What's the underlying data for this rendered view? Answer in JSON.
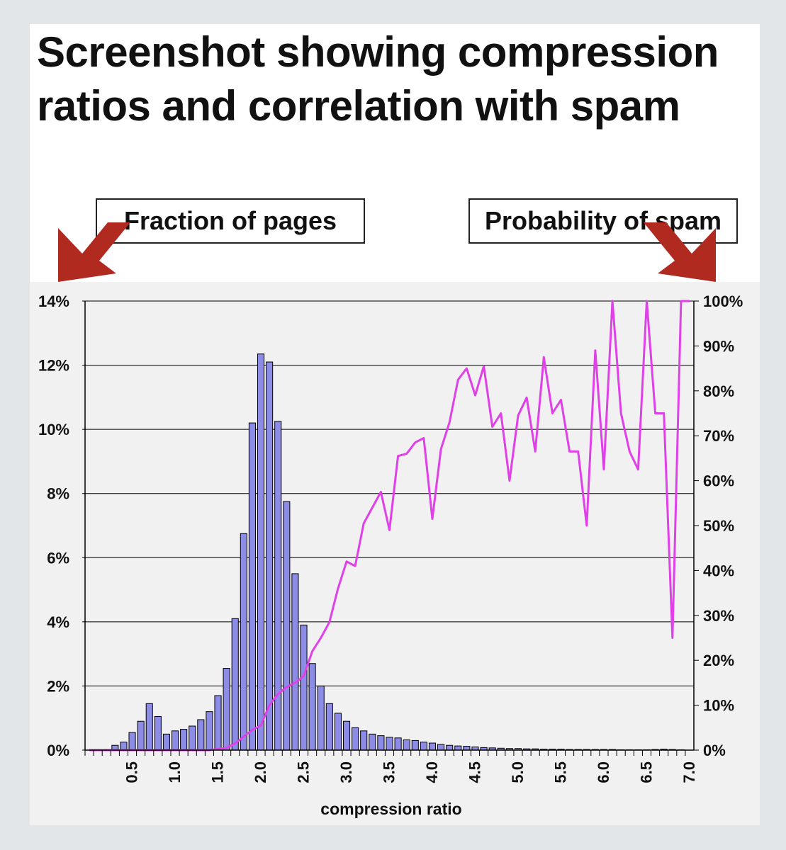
{
  "title": "Screenshot showing compression ratios and correlation with spam",
  "labels": {
    "left": "Fraction of pages",
    "right": "Probability of spam"
  },
  "colors": {
    "bars": "#8c8ce6",
    "line": "#e040e8",
    "arrow": "#b02a20"
  },
  "chart_data": {
    "type": "bar",
    "xlabel": "compression ratio",
    "x_ticks": [
      "0.5",
      "1.0",
      "1.5",
      "2.0",
      "2.5",
      "3.0",
      "3.5",
      "4.0",
      "4.5",
      "5.0",
      "5.5",
      "6.0",
      "6.5",
      "7.0"
    ],
    "y_left_ticks": [
      "0%",
      "2%",
      "4%",
      "6%",
      "8%",
      "10%",
      "12%",
      "14%"
    ],
    "y_right_ticks": [
      "0%",
      "10%",
      "20%",
      "30%",
      "40%",
      "50%",
      "60%",
      "70%",
      "80%",
      "90%",
      "100%"
    ],
    "ylim_left": [
      0,
      14
    ],
    "ylim_right": [
      0,
      100
    ],
    "bin_width": 0.1,
    "x_start": 0.0,
    "series": [
      {
        "axis": "left",
        "kind": "bar",
        "values": [
          0,
          0,
          0,
          0.15,
          0.25,
          0.55,
          0.9,
          1.45,
          1.05,
          0.5,
          0.6,
          0.65,
          0.75,
          0.95,
          1.2,
          1.7,
          2.55,
          4.1,
          6.75,
          10.2,
          12.35,
          12.1,
          10.25,
          7.75,
          5.5,
          3.9,
          2.7,
          2.0,
          1.45,
          1.15,
          0.9,
          0.7,
          0.6,
          0.5,
          0.45,
          0.4,
          0.38,
          0.32,
          0.3,
          0.25,
          0.22,
          0.18,
          0.15,
          0.13,
          0.12,
          0.1,
          0.08,
          0.07,
          0.06,
          0.05,
          0.05,
          0.04,
          0.04,
          0.03,
          0.03,
          0.03,
          0.02,
          0.02,
          0.02,
          0.02,
          0.02,
          0.02,
          0.01,
          0.01,
          0.01,
          0.01,
          0.02,
          0.03,
          0.02,
          0.01
        ]
      },
      {
        "axis": "right",
        "kind": "line",
        "points": [
          [
            0.0,
            0
          ],
          [
            0.8,
            0
          ],
          [
            1.4,
            0
          ],
          [
            1.6,
            0.5
          ],
          [
            1.7,
            1.5
          ],
          [
            1.8,
            3
          ],
          [
            1.9,
            4.5
          ],
          [
            2.0,
            5.5
          ],
          [
            2.1,
            10
          ],
          [
            2.2,
            12.5
          ],
          [
            2.3,
            14
          ],
          [
            2.4,
            15
          ],
          [
            2.5,
            16.5
          ],
          [
            2.6,
            22
          ],
          [
            2.7,
            25
          ],
          [
            2.8,
            28.5
          ],
          [
            2.9,
            36
          ],
          [
            3.0,
            42
          ],
          [
            3.1,
            41
          ],
          [
            3.2,
            50.5
          ],
          [
            3.3,
            54
          ],
          [
            3.4,
            57.5
          ],
          [
            3.5,
            49
          ],
          [
            3.6,
            65.5
          ],
          [
            3.7,
            66
          ],
          [
            3.8,
            68.5
          ],
          [
            3.9,
            69.5
          ],
          [
            4.0,
            51.5
          ],
          [
            4.1,
            67
          ],
          [
            4.2,
            73
          ],
          [
            4.3,
            82.5
          ],
          [
            4.4,
            85
          ],
          [
            4.5,
            79
          ],
          [
            4.6,
            85.5
          ],
          [
            4.7,
            72
          ],
          [
            4.8,
            75
          ],
          [
            4.9,
            60
          ],
          [
            5.0,
            74.5
          ],
          [
            5.1,
            78.5
          ],
          [
            5.2,
            66.5
          ],
          [
            5.3,
            87.5
          ],
          [
            5.4,
            75
          ],
          [
            5.5,
            78
          ],
          [
            5.6,
            66.5
          ],
          [
            5.7,
            66.5
          ],
          [
            5.8,
            50
          ],
          [
            5.9,
            89
          ],
          [
            6.0,
            62.5
          ],
          [
            6.1,
            100
          ],
          [
            6.2,
            75
          ],
          [
            6.3,
            66.5
          ],
          [
            6.4,
            62.5
          ],
          [
            6.5,
            100
          ],
          [
            6.6,
            75
          ],
          [
            6.7,
            75
          ],
          [
            6.8,
            25
          ],
          [
            6.9,
            100
          ],
          [
            7.0,
            100
          ]
        ]
      }
    ]
  }
}
